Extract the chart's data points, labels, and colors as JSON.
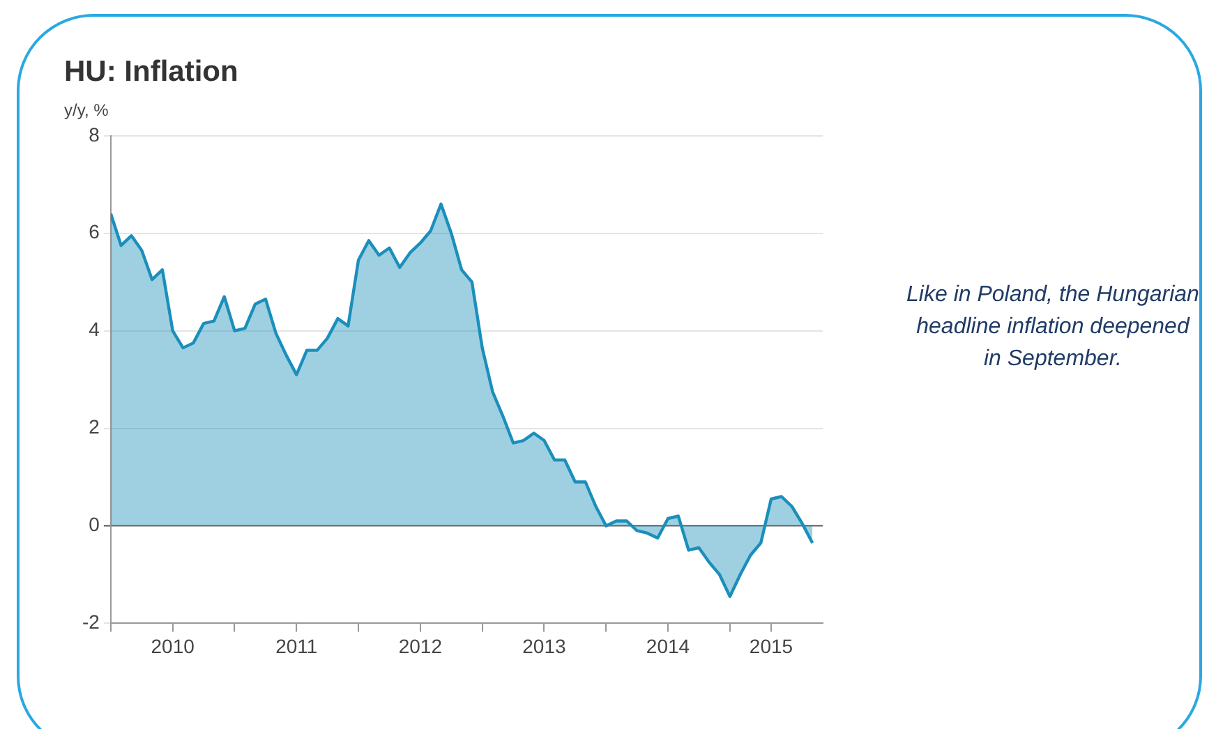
{
  "chart_data": {
    "type": "area",
    "title": "HU: Inflation",
    "ylabel": "y/y, %",
    "annotations": [
      "Like in Poland, the Hungarian headline inflation deepened in September."
    ],
    "x": [
      "2010-01",
      "2010-02",
      "2010-03",
      "2010-04",
      "2010-05",
      "2010-06",
      "2010-07",
      "2010-08",
      "2010-09",
      "2010-10",
      "2010-11",
      "2010-12",
      "2011-01",
      "2011-02",
      "2011-03",
      "2011-04",
      "2011-05",
      "2011-06",
      "2011-07",
      "2011-08",
      "2011-09",
      "2011-10",
      "2011-11",
      "2011-12",
      "2012-01",
      "2012-02",
      "2012-03",
      "2012-04",
      "2012-05",
      "2012-06",
      "2012-07",
      "2012-08",
      "2012-09",
      "2012-10",
      "2012-11",
      "2012-12",
      "2013-01",
      "2013-02",
      "2013-03",
      "2013-04",
      "2013-05",
      "2013-06",
      "2013-07",
      "2013-08",
      "2013-09",
      "2013-10",
      "2013-11",
      "2013-12",
      "2014-01",
      "2014-02",
      "2014-03",
      "2014-04",
      "2014-05",
      "2014-06",
      "2014-07",
      "2014-08",
      "2014-09",
      "2014-10",
      "2014-11",
      "2014-12",
      "2015-01",
      "2015-02",
      "2015-03",
      "2015-04",
      "2015-05",
      "2015-06",
      "2015-07",
      "2015-08",
      "2015-09"
    ],
    "series": [
      {
        "color": "#1b8fbb",
        "values": [
          6.4,
          5.75,
          5.95,
          5.65,
          5.05,
          5.25,
          4.0,
          3.65,
          3.75,
          4.15,
          4.2,
          4.7,
          4.0,
          4.05,
          4.55,
          4.65,
          3.95,
          3.5,
          3.1,
          3.6,
          3.6,
          3.85,
          4.25,
          4.1,
          5.45,
          5.85,
          5.55,
          5.7,
          5.3,
          5.6,
          5.8,
          6.05,
          6.6,
          6.0,
          5.25,
          5.0,
          3.65,
          2.75,
          2.25,
          1.7,
          1.75,
          1.9,
          1.75,
          1.35,
          1.35,
          0.9,
          0.9,
          0.4,
          0.0,
          0.1,
          0.1,
          -0.1,
          -0.15,
          -0.25,
          0.15,
          0.2,
          -0.5,
          -0.45,
          -0.75,
          -1.0,
          -1.45,
          -1.0,
          -0.6,
          -0.35,
          0.55,
          0.6,
          0.4,
          0.05,
          -0.35
        ]
      }
    ],
    "xlim": [
      "2010-01",
      "2015-10"
    ],
    "xticks": [
      {
        "value": "2010-01",
        "label": null
      },
      {
        "value": "2010-07",
        "label": "2010"
      },
      {
        "value": "2011-01",
        "label": null
      },
      {
        "value": "2011-07",
        "label": "2011"
      },
      {
        "value": "2012-01",
        "label": null
      },
      {
        "value": "2012-07",
        "label": "2012"
      },
      {
        "value": "2013-01",
        "label": null
      },
      {
        "value": "2013-07",
        "label": "2013"
      },
      {
        "value": "2014-01",
        "label": null
      },
      {
        "value": "2014-07",
        "label": "2014"
      },
      {
        "value": "2015-01",
        "label": null
      },
      {
        "value": "2015-05",
        "label": "2015"
      }
    ],
    "ylim": [
      -2,
      8
    ],
    "yticks": [
      -2,
      0,
      2,
      4,
      6,
      8
    ],
    "grid": "y",
    "legend": false
  }
}
